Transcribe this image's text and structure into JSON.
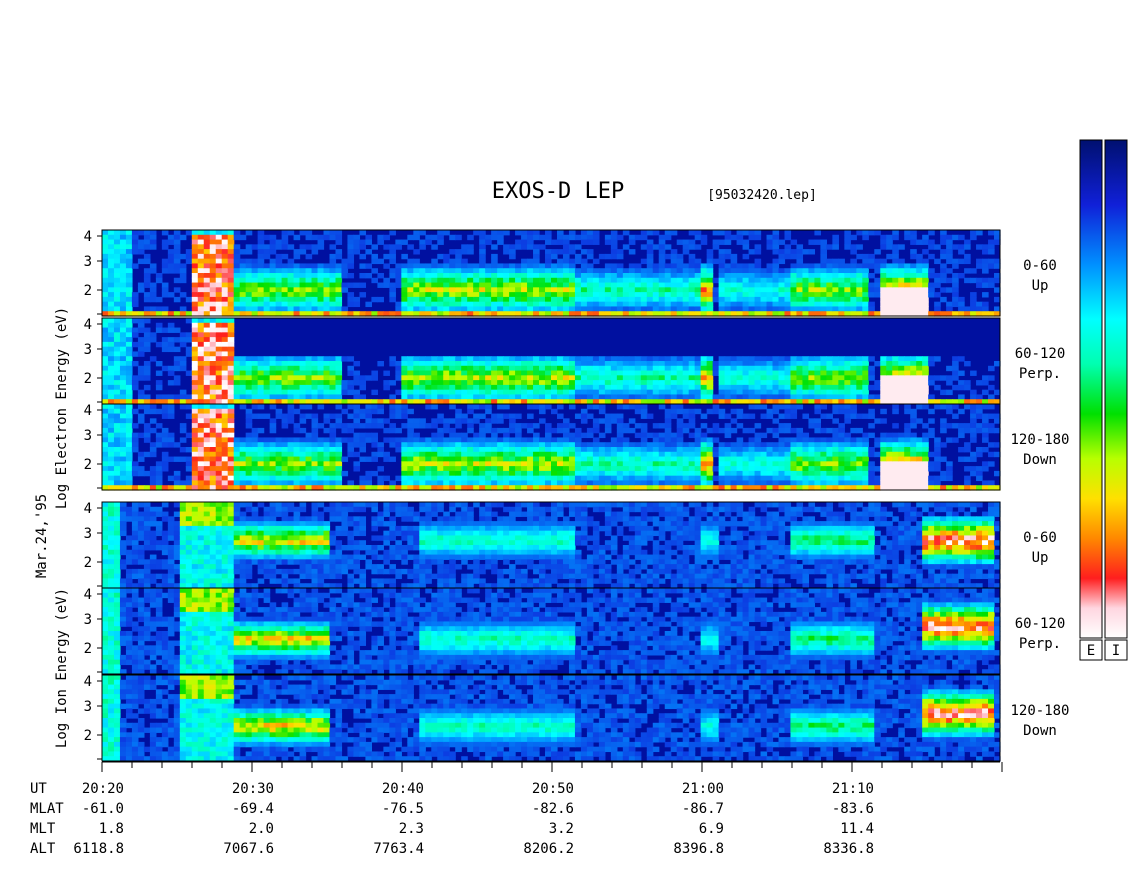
{
  "chart_data": {
    "type": "heatmap",
    "title": "EXOS-D LEP",
    "file": "[95032420.lep]",
    "date_label": "Mar.24,'95",
    "x_tick_labels": [
      "20:20",
      "20:30",
      "20:40",
      "20:50",
      "21:00",
      "21:10"
    ],
    "groups": [
      {
        "name": "electron",
        "ylabel_lines": [
          "Log",
          "Electron",
          "Energy",
          "(eV)"
        ],
        "panels": [
          {
            "angle": "0-60",
            "direction": "Up"
          },
          {
            "angle": "60-120",
            "direction": "Perp."
          },
          {
            "angle": "120-180",
            "direction": "Down"
          }
        ]
      },
      {
        "name": "ion",
        "ylabel_lines": [
          "Log",
          "Ion",
          "Energy",
          "(eV)"
        ],
        "panels": [
          {
            "angle": "0-60",
            "direction": "Up"
          },
          {
            "angle": "60-120",
            "direction": "Perp."
          },
          {
            "angle": "120-180",
            "direction": "Down"
          }
        ]
      }
    ],
    "y_ticks": [
      "2",
      "3",
      "4"
    ],
    "colorbars": [
      "E",
      "I"
    ],
    "orbit_table": {
      "rows": [
        {
          "name": "UT",
          "values": [
            "20:20",
            "20:30",
            "20:40",
            "20:50",
            "21:00",
            "21:10"
          ]
        },
        {
          "name": "MLAT",
          "values": [
            "-61.0",
            "-69.4",
            "-76.5",
            "-82.6",
            "-86.7",
            "-83.6"
          ]
        },
        {
          "name": "MLT",
          "values": [
            "1.8",
            "2.0",
            "2.3",
            "3.2",
            "6.9",
            "11.4"
          ]
        },
        {
          "name": "ALT",
          "values": [
            "6118.8",
            "7067.6",
            "7763.4",
            "8206.2",
            "8396.8",
            "8336.8"
          ]
        }
      ]
    }
  }
}
